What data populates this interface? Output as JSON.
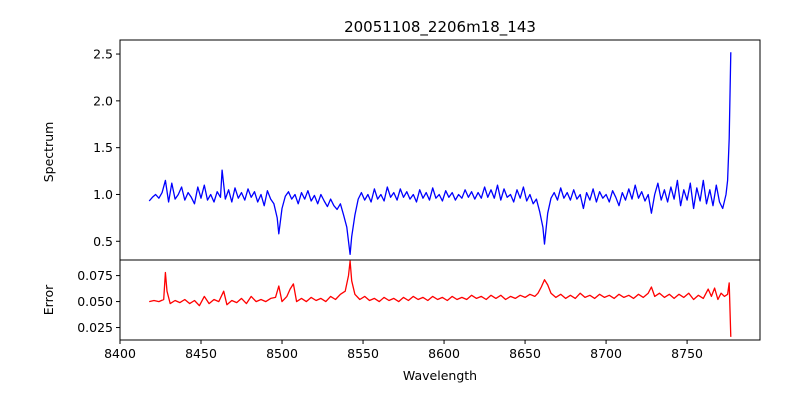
{
  "chart_data": [
    {
      "name": "spectrum-panel",
      "type": "line",
      "title": "20051108_2206m18_143",
      "xlabel": "",
      "ylabel": "Spectrum",
      "xlim": [
        8400,
        8795
      ],
      "ylim": [
        0.3,
        2.65
      ],
      "yticks": [
        0.5,
        1.0,
        1.5,
        2.0,
        2.5
      ],
      "ytick_labels": [
        "0.5",
        "1.0",
        "1.5",
        "2.0",
        "2.5"
      ],
      "color": "#0000ff",
      "points": [
        [
          8418,
          0.93
        ],
        [
          8420,
          0.97
        ],
        [
          8422,
          1.0
        ],
        [
          8424,
          0.96
        ],
        [
          8426,
          1.02
        ],
        [
          8428,
          1.15
        ],
        [
          8430,
          0.92
        ],
        [
          8432,
          1.12
        ],
        [
          8434,
          0.95
        ],
        [
          8436,
          1.0
        ],
        [
          8438,
          1.08
        ],
        [
          8440,
          0.94
        ],
        [
          8442,
          1.02
        ],
        [
          8444,
          0.97
        ],
        [
          8446,
          0.9
        ],
        [
          8448,
          1.08
        ],
        [
          8450,
          0.96
        ],
        [
          8452,
          1.1
        ],
        [
          8454,
          0.94
        ],
        [
          8456,
          1.0
        ],
        [
          8458,
          0.92
        ],
        [
          8460,
          1.03
        ],
        [
          8462,
          0.97
        ],
        [
          8463,
          1.26
        ],
        [
          8465,
          0.95
        ],
        [
          8467,
          1.05
        ],
        [
          8469,
          0.92
        ],
        [
          8471,
          1.07
        ],
        [
          8473,
          0.96
        ],
        [
          8475,
          1.02
        ],
        [
          8477,
          0.94
        ],
        [
          8479,
          1.06
        ],
        [
          8481,
          0.97
        ],
        [
          8483,
          1.03
        ],
        [
          8485,
          0.92
        ],
        [
          8487,
          1.0
        ],
        [
          8489,
          0.88
        ],
        [
          8491,
          1.04
        ],
        [
          8493,
          0.95
        ],
        [
          8495,
          0.9
        ],
        [
          8497,
          0.75
        ],
        [
          8498,
          0.58
        ],
        [
          8500,
          0.85
        ],
        [
          8502,
          0.98
        ],
        [
          8504,
          1.03
        ],
        [
          8506,
          0.95
        ],
        [
          8508,
          1.0
        ],
        [
          8510,
          0.9
        ],
        [
          8512,
          1.02
        ],
        [
          8514,
          0.95
        ],
        [
          8516,
          1.04
        ],
        [
          8518,
          0.93
        ],
        [
          8520,
          0.99
        ],
        [
          8522,
          0.9
        ],
        [
          8524,
          1.0
        ],
        [
          8526,
          0.93
        ],
        [
          8528,
          0.87
        ],
        [
          8530,
          0.95
        ],
        [
          8532,
          0.88
        ],
        [
          8534,
          0.84
        ],
        [
          8536,
          0.9
        ],
        [
          8538,
          0.78
        ],
        [
          8540,
          0.65
        ],
        [
          8541,
          0.5
        ],
        [
          8542,
          0.36
        ],
        [
          8543,
          0.55
        ],
        [
          8545,
          0.78
        ],
        [
          8547,
          0.95
        ],
        [
          8549,
          1.02
        ],
        [
          8551,
          0.94
        ],
        [
          8553,
          1.0
        ],
        [
          8555,
          0.92
        ],
        [
          8557,
          1.06
        ],
        [
          8559,
          0.95
        ],
        [
          8561,
          1.0
        ],
        [
          8563,
          0.93
        ],
        [
          8565,
          1.08
        ],
        [
          8567,
          0.97
        ],
        [
          8569,
          1.02
        ],
        [
          8571,
          0.94
        ],
        [
          8573,
          1.06
        ],
        [
          8575,
          0.97
        ],
        [
          8577,
          1.03
        ],
        [
          8579,
          0.95
        ],
        [
          8581,
          1.0
        ],
        [
          8583,
          0.92
        ],
        [
          8585,
          1.05
        ],
        [
          8587,
          0.96
        ],
        [
          8589,
          1.02
        ],
        [
          8591,
          0.94
        ],
        [
          8593,
          1.07
        ],
        [
          8595,
          0.96
        ],
        [
          8597,
          1.0
        ],
        [
          8599,
          0.93
        ],
        [
          8601,
          1.04
        ],
        [
          8603,
          0.97
        ],
        [
          8605,
          1.02
        ],
        [
          8607,
          0.94
        ],
        [
          8609,
          1.0
        ],
        [
          8611,
          0.96
        ],
        [
          8613,
          1.05
        ],
        [
          8615,
          0.97
        ],
        [
          8617,
          1.03
        ],
        [
          8619,
          0.95
        ],
        [
          8621,
          1.02
        ],
        [
          8623,
          0.96
        ],
        [
          8625,
          1.08
        ],
        [
          8627,
          0.97
        ],
        [
          8629,
          1.05
        ],
        [
          8631,
          0.96
        ],
        [
          8633,
          1.1
        ],
        [
          8635,
          0.94
        ],
        [
          8637,
          1.06
        ],
        [
          8639,
          0.97
        ],
        [
          8641,
          1.0
        ],
        [
          8643,
          0.92
        ],
        [
          8645,
          1.05
        ],
        [
          8647,
          0.96
        ],
        [
          8649,
          1.08
        ],
        [
          8651,
          0.93
        ],
        [
          8653,
          1.0
        ],
        [
          8655,
          0.9
        ],
        [
          8657,
          0.95
        ],
        [
          8659,
          0.82
        ],
        [
          8661,
          0.65
        ],
        [
          8662,
          0.47
        ],
        [
          8664,
          0.8
        ],
        [
          8666,
          0.96
        ],
        [
          8668,
          1.02
        ],
        [
          8670,
          0.94
        ],
        [
          8672,
          1.07
        ],
        [
          8674,
          0.96
        ],
        [
          8676,
          1.02
        ],
        [
          8678,
          0.94
        ],
        [
          8680,
          1.05
        ],
        [
          8682,
          0.95
        ],
        [
          8684,
          1.0
        ],
        [
          8686,
          0.85
        ],
        [
          8688,
          1.02
        ],
        [
          8690,
          0.94
        ],
        [
          8692,
          1.06
        ],
        [
          8694,
          0.92
        ],
        [
          8696,
          1.03
        ],
        [
          8698,
          0.96
        ],
        [
          8700,
          1.0
        ],
        [
          8702,
          0.92
        ],
        [
          8704,
          1.04
        ],
        [
          8706,
          0.97
        ],
        [
          8708,
          0.88
        ],
        [
          8710,
          1.02
        ],
        [
          8712,
          0.94
        ],
        [
          8714,
          1.06
        ],
        [
          8716,
          0.95
        ],
        [
          8718,
          1.1
        ],
        [
          8720,
          0.96
        ],
        [
          8722,
          1.03
        ],
        [
          8724,
          0.93
        ],
        [
          8726,
          1.0
        ],
        [
          8728,
          0.8
        ],
        [
          8730,
          1.0
        ],
        [
          8732,
          1.12
        ],
        [
          8734,
          0.94
        ],
        [
          8736,
          1.05
        ],
        [
          8738,
          0.92
        ],
        [
          8740,
          1.08
        ],
        [
          8742,
          0.95
        ],
        [
          8744,
          1.15
        ],
        [
          8746,
          0.88
        ],
        [
          8748,
          1.05
        ],
        [
          8750,
          0.94
        ],
        [
          8752,
          1.12
        ],
        [
          8754,
          0.85
        ],
        [
          8756,
          1.07
        ],
        [
          8758,
          0.93
        ],
        [
          8760,
          1.15
        ],
        [
          8762,
          0.9
        ],
        [
          8764,
          1.05
        ],
        [
          8766,
          0.88
        ],
        [
          8768,
          1.1
        ],
        [
          8770,
          0.92
        ],
        [
          8772,
          0.85
        ],
        [
          8774,
          1.0
        ],
        [
          8775,
          1.15
        ],
        [
          8776,
          1.6
        ],
        [
          8777,
          2.52
        ]
      ]
    },
    {
      "name": "error-panel",
      "type": "line",
      "title": "",
      "xlabel": "Wavelength",
      "ylabel": "Error",
      "xlim": [
        8400,
        8795
      ],
      "ylim": [
        0.013,
        0.09
      ],
      "xticks": [
        8400,
        8450,
        8500,
        8550,
        8600,
        8650,
        8700,
        8750
      ],
      "xtick_labels": [
        "8400",
        "8450",
        "8500",
        "8550",
        "8600",
        "8650",
        "8700",
        "8750"
      ],
      "yticks": [
        0.025,
        0.05,
        0.075
      ],
      "ytick_labels": [
        "0.025",
        "0.050",
        "0.075"
      ],
      "color": "#ff0000",
      "points": [
        [
          8418,
          0.05
        ],
        [
          8421,
          0.051
        ],
        [
          8424,
          0.05
        ],
        [
          8427,
          0.052
        ],
        [
          8428,
          0.078
        ],
        [
          8429,
          0.06
        ],
        [
          8431,
          0.048
        ],
        [
          8434,
          0.051
        ],
        [
          8437,
          0.049
        ],
        [
          8440,
          0.052
        ],
        [
          8443,
          0.048
        ],
        [
          8446,
          0.051
        ],
        [
          8449,
          0.046
        ],
        [
          8452,
          0.055
        ],
        [
          8455,
          0.048
        ],
        [
          8458,
          0.052
        ],
        [
          8461,
          0.05
        ],
        [
          8464,
          0.06
        ],
        [
          8466,
          0.047
        ],
        [
          8469,
          0.051
        ],
        [
          8472,
          0.049
        ],
        [
          8475,
          0.053
        ],
        [
          8478,
          0.048
        ],
        [
          8481,
          0.055
        ],
        [
          8484,
          0.05
        ],
        [
          8487,
          0.052
        ],
        [
          8490,
          0.05
        ],
        [
          8493,
          0.053
        ],
        [
          8496,
          0.054
        ],
        [
          8498,
          0.065
        ],
        [
          8500,
          0.05
        ],
        [
          8503,
          0.055
        ],
        [
          8505,
          0.062
        ],
        [
          8507,
          0.067
        ],
        [
          8509,
          0.05
        ],
        [
          8512,
          0.053
        ],
        [
          8515,
          0.05
        ],
        [
          8518,
          0.054
        ],
        [
          8521,
          0.051
        ],
        [
          8524,
          0.053
        ],
        [
          8527,
          0.05
        ],
        [
          8530,
          0.055
        ],
        [
          8533,
          0.052
        ],
        [
          8536,
          0.057
        ],
        [
          8539,
          0.06
        ],
        [
          8541,
          0.075
        ],
        [
          8542,
          0.089
        ],
        [
          8543,
          0.07
        ],
        [
          8545,
          0.057
        ],
        [
          8548,
          0.052
        ],
        [
          8551,
          0.055
        ],
        [
          8554,
          0.051
        ],
        [
          8557,
          0.053
        ],
        [
          8560,
          0.05
        ],
        [
          8563,
          0.054
        ],
        [
          8566,
          0.051
        ],
        [
          8569,
          0.053
        ],
        [
          8572,
          0.05
        ],
        [
          8575,
          0.054
        ],
        [
          8578,
          0.051
        ],
        [
          8581,
          0.055
        ],
        [
          8584,
          0.052
        ],
        [
          8587,
          0.054
        ],
        [
          8590,
          0.051
        ],
        [
          8593,
          0.055
        ],
        [
          8596,
          0.052
        ],
        [
          8599,
          0.054
        ],
        [
          8602,
          0.051
        ],
        [
          8605,
          0.055
        ],
        [
          8608,
          0.052
        ],
        [
          8611,
          0.054
        ],
        [
          8614,
          0.052
        ],
        [
          8617,
          0.056
        ],
        [
          8620,
          0.053
        ],
        [
          8623,
          0.055
        ],
        [
          8626,
          0.052
        ],
        [
          8629,
          0.056
        ],
        [
          8632,
          0.053
        ],
        [
          8635,
          0.056
        ],
        [
          8638,
          0.052
        ],
        [
          8641,
          0.055
        ],
        [
          8644,
          0.053
        ],
        [
          8647,
          0.056
        ],
        [
          8650,
          0.054
        ],
        [
          8653,
          0.057
        ],
        [
          8656,
          0.055
        ],
        [
          8658,
          0.058
        ],
        [
          8660,
          0.064
        ],
        [
          8662,
          0.071
        ],
        [
          8664,
          0.066
        ],
        [
          8666,
          0.058
        ],
        [
          8669,
          0.054
        ],
        [
          8672,
          0.057
        ],
        [
          8675,
          0.053
        ],
        [
          8678,
          0.056
        ],
        [
          8681,
          0.053
        ],
        [
          8684,
          0.058
        ],
        [
          8687,
          0.054
        ],
        [
          8690,
          0.056
        ],
        [
          8693,
          0.053
        ],
        [
          8696,
          0.057
        ],
        [
          8699,
          0.054
        ],
        [
          8702,
          0.056
        ],
        [
          8705,
          0.053
        ],
        [
          8708,
          0.057
        ],
        [
          8711,
          0.054
        ],
        [
          8714,
          0.056
        ],
        [
          8717,
          0.053
        ],
        [
          8720,
          0.057
        ],
        [
          8723,
          0.054
        ],
        [
          8726,
          0.058
        ],
        [
          8728,
          0.064
        ],
        [
          8730,
          0.055
        ],
        [
          8733,
          0.058
        ],
        [
          8736,
          0.054
        ],
        [
          8739,
          0.057
        ],
        [
          8742,
          0.053
        ],
        [
          8745,
          0.057
        ],
        [
          8748,
          0.054
        ],
        [
          8751,
          0.058
        ],
        [
          8754,
          0.052
        ],
        [
          8757,
          0.056
        ],
        [
          8760,
          0.053
        ],
        [
          8763,
          0.062
        ],
        [
          8765,
          0.055
        ],
        [
          8767,
          0.063
        ],
        [
          8769,
          0.052
        ],
        [
          8771,
          0.058
        ],
        [
          8773,
          0.055
        ],
        [
          8775,
          0.057
        ],
        [
          8776,
          0.068
        ],
        [
          8777,
          0.016
        ]
      ]
    }
  ]
}
